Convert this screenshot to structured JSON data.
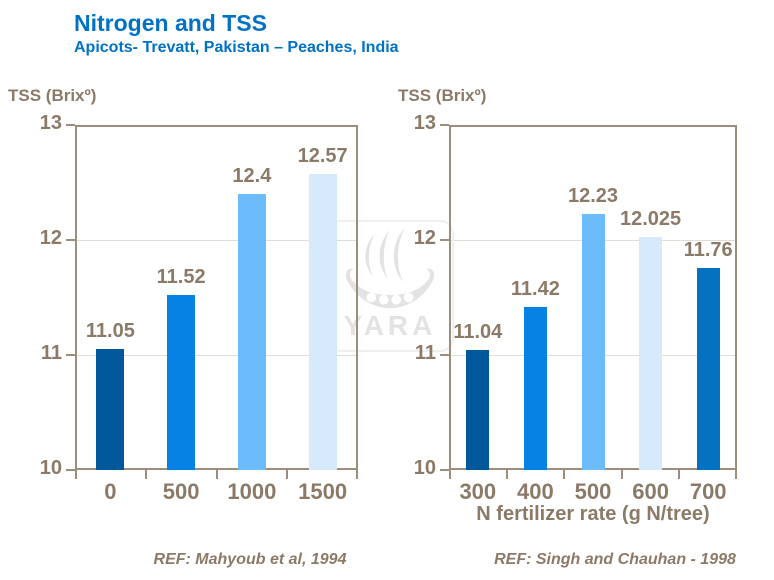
{
  "slide": {
    "title": "Nitrogen and TSS",
    "subtitle": "Apicots- Trevatt, Pakistan – Peaches, India",
    "title_color": "#0072C6",
    "text_color": "#8B7A67",
    "axis_color": "#9C8D7C",
    "grid_color": "#E0DDD8",
    "watermark_text": "YARA",
    "watermark_icon": "viking-ship-icon"
  },
  "chart_data": [
    {
      "type": "bar",
      "axis_title": "TSS (Brixº)",
      "xlabel": "",
      "ylabel": "TSS (Brixº)",
      "categories": [
        "0",
        "500",
        "1000",
        "1500"
      ],
      "values": [
        11.05,
        11.52,
        12.4,
        12.57
      ],
      "value_labels": [
        "11.05",
        "11.52",
        "12.4",
        "12.57"
      ],
      "bar_colors": [
        "#00589B",
        "#0582E4",
        "#6CBCFB",
        "#D7EAFC"
      ],
      "ylim": [
        10,
        13
      ],
      "yticks": [
        "10",
        "11",
        "12",
        "13"
      ],
      "grid": true,
      "legend": "none",
      "ref": "REF: Mahyoub et al, 1994"
    },
    {
      "type": "bar",
      "axis_title": "TSS (Brixº)",
      "xlabel": "N fertilizer rate (g N/tree)",
      "ylabel": "TSS (Brixº)",
      "categories": [
        "300",
        "400",
        "500",
        "600",
        "700"
      ],
      "values": [
        11.04,
        11.42,
        12.23,
        12.025,
        11.76
      ],
      "value_labels": [
        "11.04",
        "11.42",
        "12.23",
        "12.025",
        "11.76"
      ],
      "bar_colors": [
        "#00589B",
        "#0582E4",
        "#6CBCFB",
        "#D7EAFC",
        "#0571C1"
      ],
      "ylim": [
        10,
        13
      ],
      "yticks": [
        "10",
        "11",
        "12",
        "13"
      ],
      "grid": true,
      "legend": "none",
      "ref": "REF: Singh and Chauhan - 1998"
    }
  ]
}
